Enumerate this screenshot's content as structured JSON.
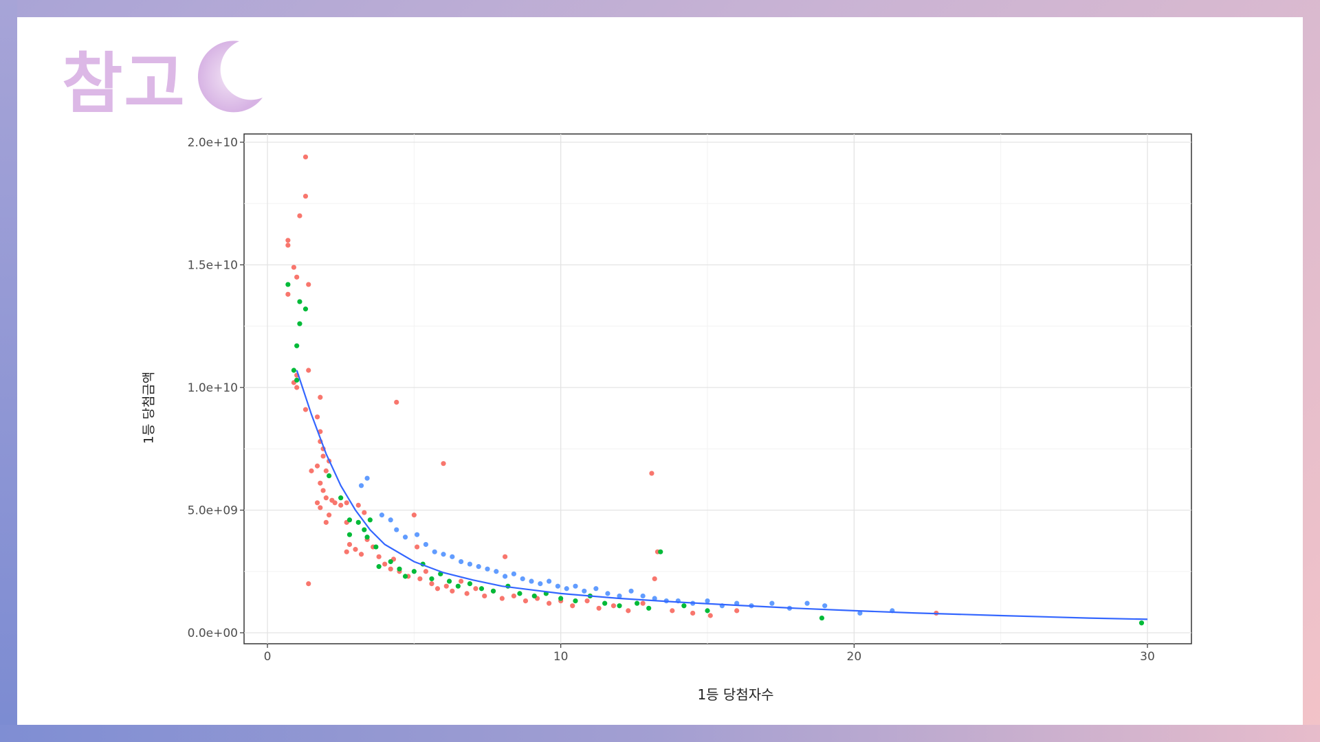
{
  "slide": {
    "title": "참고",
    "title_color": "#dcb8e6",
    "icon": "crescent-moon-icon"
  },
  "chart_data": {
    "type": "scatter",
    "xlabel": "1등 당첨자수",
    "ylabel": "1등 당첨금액",
    "xlim": [
      0,
      30
    ],
    "ylim": [
      0,
      20000000000
    ],
    "x_ticks": [
      0,
      10,
      20,
      30
    ],
    "x_tick_labels": [
      "0",
      "10",
      "20",
      "30"
    ],
    "y_ticks": [
      0,
      5000000000,
      10000000000,
      15000000000,
      20000000000
    ],
    "y_tick_labels": [
      "0.0e+00",
      "5.0e+09",
      "1.0e+10",
      "1.5e+10",
      "2.0e+10"
    ],
    "grid": true,
    "legend": "none",
    "series": [
      {
        "color": "#f8766d",
        "points": [
          [
            1.3,
            19400000000
          ],
          [
            1.3,
            17800000000
          ],
          [
            1.1,
            17000000000
          ],
          [
            0.7,
            16000000000
          ],
          [
            0.7,
            15800000000
          ],
          [
            0.9,
            14900000000
          ],
          [
            1.0,
            14500000000
          ],
          [
            1.4,
            14200000000
          ],
          [
            0.7,
            13800000000
          ],
          [
            1.4,
            10700000000
          ],
          [
            1.0,
            10500000000
          ],
          [
            0.9,
            10200000000
          ],
          [
            1.0,
            10000000000
          ],
          [
            1.8,
            9600000000
          ],
          [
            1.3,
            9100000000
          ],
          [
            1.7,
            8800000000
          ],
          [
            1.8,
            8200000000
          ],
          [
            1.8,
            7800000000
          ],
          [
            1.9,
            7500000000
          ],
          [
            1.9,
            7200000000
          ],
          [
            2.1,
            7000000000
          ],
          [
            1.5,
            6600000000
          ],
          [
            1.7,
            6800000000
          ],
          [
            2.0,
            6600000000
          ],
          [
            1.8,
            6100000000
          ],
          [
            1.9,
            5800000000
          ],
          [
            2.0,
            5500000000
          ],
          [
            2.2,
            5400000000
          ],
          [
            1.7,
            5300000000
          ],
          [
            1.8,
            5100000000
          ],
          [
            2.3,
            5300000000
          ],
          [
            2.5,
            5200000000
          ],
          [
            2.1,
            4800000000
          ],
          [
            2.0,
            4500000000
          ],
          [
            1.4,
            2000000000
          ],
          [
            2.7,
            5300000000
          ],
          [
            3.1,
            5200000000
          ],
          [
            3.3,
            4900000000
          ],
          [
            2.7,
            4500000000
          ],
          [
            2.8,
            3600000000
          ],
          [
            2.7,
            3300000000
          ],
          [
            3.0,
            3400000000
          ],
          [
            3.2,
            3200000000
          ],
          [
            3.4,
            3800000000
          ],
          [
            3.6,
            3500000000
          ],
          [
            3.8,
            3100000000
          ],
          [
            4.0,
            2800000000
          ],
          [
            4.2,
            2600000000
          ],
          [
            4.4,
            9400000000
          ],
          [
            4.3,
            3000000000
          ],
          [
            4.5,
            2500000000
          ],
          [
            4.8,
            2300000000
          ],
          [
            5.0,
            4800000000
          ],
          [
            5.1,
            3500000000
          ],
          [
            5.2,
            2200000000
          ],
          [
            5.4,
            2500000000
          ],
          [
            5.6,
            2000000000
          ],
          [
            5.8,
            1800000000
          ],
          [
            6.0,
            6900000000
          ],
          [
            6.1,
            1900000000
          ],
          [
            6.3,
            1700000000
          ],
          [
            6.6,
            2100000000
          ],
          [
            6.8,
            1600000000
          ],
          [
            7.1,
            1800000000
          ],
          [
            7.4,
            1500000000
          ],
          [
            7.7,
            1700000000
          ],
          [
            8.0,
            1400000000
          ],
          [
            8.1,
            3100000000
          ],
          [
            8.4,
            1500000000
          ],
          [
            8.8,
            1300000000
          ],
          [
            9.2,
            1400000000
          ],
          [
            9.6,
            1200000000
          ],
          [
            10.0,
            1300000000
          ],
          [
            10.4,
            1100000000
          ],
          [
            10.9,
            1300000000
          ],
          [
            11.3,
            1000000000
          ],
          [
            11.8,
            1100000000
          ],
          [
            12.3,
            900000000
          ],
          [
            12.8,
            1200000000
          ],
          [
            13.1,
            6500000000
          ],
          [
            13.2,
            2200000000
          ],
          [
            13.3,
            3300000000
          ],
          [
            13.8,
            900000000
          ],
          [
            14.5,
            800000000
          ],
          [
            15.1,
            700000000
          ],
          [
            16.0,
            900000000
          ],
          [
            22.8,
            800000000
          ]
        ]
      },
      {
        "color": "#00ba38",
        "points": [
          [
            0.7,
            14200000000
          ],
          [
            1.1,
            13500000000
          ],
          [
            1.3,
            13200000000
          ],
          [
            1.1,
            12600000000
          ],
          [
            1.0,
            11700000000
          ],
          [
            0.9,
            10700000000
          ],
          [
            1.0,
            10300000000
          ],
          [
            2.1,
            6400000000
          ],
          [
            2.5,
            5500000000
          ],
          [
            2.8,
            4600000000
          ],
          [
            2.8,
            4000000000
          ],
          [
            3.1,
            4500000000
          ],
          [
            3.3,
            4200000000
          ],
          [
            3.5,
            4600000000
          ],
          [
            3.4,
            3900000000
          ],
          [
            3.7,
            3500000000
          ],
          [
            3.8,
            2700000000
          ],
          [
            4.2,
            2900000000
          ],
          [
            4.5,
            2600000000
          ],
          [
            4.7,
            2300000000
          ],
          [
            5.0,
            2500000000
          ],
          [
            5.3,
            2800000000
          ],
          [
            5.6,
            2200000000
          ],
          [
            5.9,
            2400000000
          ],
          [
            6.2,
            2100000000
          ],
          [
            6.5,
            1900000000
          ],
          [
            6.9,
            2000000000
          ],
          [
            7.3,
            1800000000
          ],
          [
            7.7,
            1700000000
          ],
          [
            8.2,
            1900000000
          ],
          [
            8.6,
            1600000000
          ],
          [
            9.1,
            1500000000
          ],
          [
            9.5,
            1600000000
          ],
          [
            10.0,
            1400000000
          ],
          [
            10.5,
            1300000000
          ],
          [
            11.0,
            1500000000
          ],
          [
            11.5,
            1200000000
          ],
          [
            12.0,
            1100000000
          ],
          [
            12.6,
            1200000000
          ],
          [
            13.0,
            1000000000
          ],
          [
            13.4,
            3300000000
          ],
          [
            14.2,
            1100000000
          ],
          [
            15.0,
            900000000
          ],
          [
            18.9,
            600000000
          ],
          [
            29.8,
            400000000
          ]
        ]
      },
      {
        "color": "#619cff",
        "points": [
          [
            3.2,
            6000000000
          ],
          [
            3.4,
            6300000000
          ],
          [
            3.9,
            4800000000
          ],
          [
            4.2,
            4600000000
          ],
          [
            4.4,
            4200000000
          ],
          [
            4.7,
            3900000000
          ],
          [
            5.1,
            4000000000
          ],
          [
            5.4,
            3600000000
          ],
          [
            5.7,
            3300000000
          ],
          [
            6.0,
            3200000000
          ],
          [
            6.3,
            3100000000
          ],
          [
            6.6,
            2900000000
          ],
          [
            6.9,
            2800000000
          ],
          [
            7.2,
            2700000000
          ],
          [
            7.5,
            2600000000
          ],
          [
            7.8,
            2500000000
          ],
          [
            8.1,
            2300000000
          ],
          [
            8.4,
            2400000000
          ],
          [
            8.7,
            2200000000
          ],
          [
            9.0,
            2100000000
          ],
          [
            9.3,
            2000000000
          ],
          [
            9.6,
            2100000000
          ],
          [
            9.9,
            1900000000
          ],
          [
            10.2,
            1800000000
          ],
          [
            10.5,
            1900000000
          ],
          [
            10.8,
            1700000000
          ],
          [
            11.2,
            1800000000
          ],
          [
            11.6,
            1600000000
          ],
          [
            12.0,
            1500000000
          ],
          [
            12.4,
            1700000000
          ],
          [
            12.8,
            1500000000
          ],
          [
            13.2,
            1400000000
          ],
          [
            13.6,
            1300000000
          ],
          [
            14.0,
            1300000000
          ],
          [
            14.5,
            1200000000
          ],
          [
            15.0,
            1300000000
          ],
          [
            15.5,
            1100000000
          ],
          [
            16.0,
            1200000000
          ],
          [
            16.5,
            1100000000
          ],
          [
            17.2,
            1200000000
          ],
          [
            17.8,
            1000000000
          ],
          [
            18.4,
            1200000000
          ],
          [
            19.0,
            1100000000
          ],
          [
            20.2,
            800000000
          ],
          [
            21.3,
            900000000
          ]
        ]
      }
    ],
    "trend_line": {
      "color": "#3366ff",
      "x": [
        1.0,
        1.5,
        2.0,
        2.5,
        3.0,
        3.5,
        4.0,
        5.0,
        6.0,
        7.0,
        8.0,
        10.0,
        12.0,
        14.0,
        16.0,
        18.0,
        20.0,
        22.0,
        25.0,
        28.0,
        30.0
      ],
      "y": [
        10700000000,
        8900000000,
        7300000000,
        6000000000,
        5000000000,
        4200000000,
        3600000000,
        2900000000,
        2450000000,
        2150000000,
        1900000000,
        1600000000,
        1400000000,
        1250000000,
        1120000000,
        1000000000,
        900000000,
        810000000,
        700000000,
        600000000,
        550000000
      ]
    }
  }
}
